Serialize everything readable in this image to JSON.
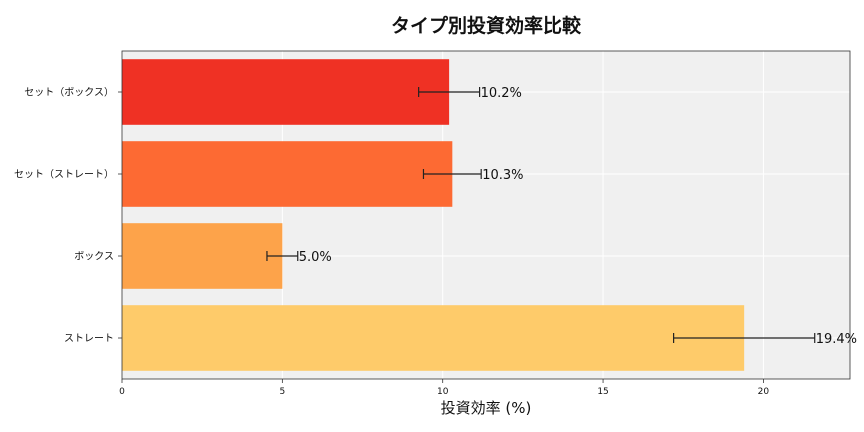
{
  "chart_data": {
    "type": "bar",
    "orientation": "horizontal",
    "title": "タイプ別投資効率比較",
    "xlabel": "投資効率 (%)",
    "ylabel": "",
    "xlim": [
      0,
      22.7
    ],
    "xticks": [
      0,
      5,
      10,
      15,
      20
    ],
    "grid": true,
    "categories": [
      "セット（ボックス）",
      "セット（ストレート）",
      "ボックス",
      "ストレート"
    ],
    "values": [
      10.2,
      10.3,
      5.0,
      19.4
    ],
    "errors": [
      0.95,
      0.9,
      0.48,
      2.2
    ],
    "data_labels": [
      "10.2%",
      "10.3%",
      "5.0%",
      "19.4%"
    ],
    "colors": [
      "#ef3124",
      "#fd6a33",
      "#fda34a",
      "#fecb6a"
    ],
    "plot_background": "#f0f0f0"
  }
}
